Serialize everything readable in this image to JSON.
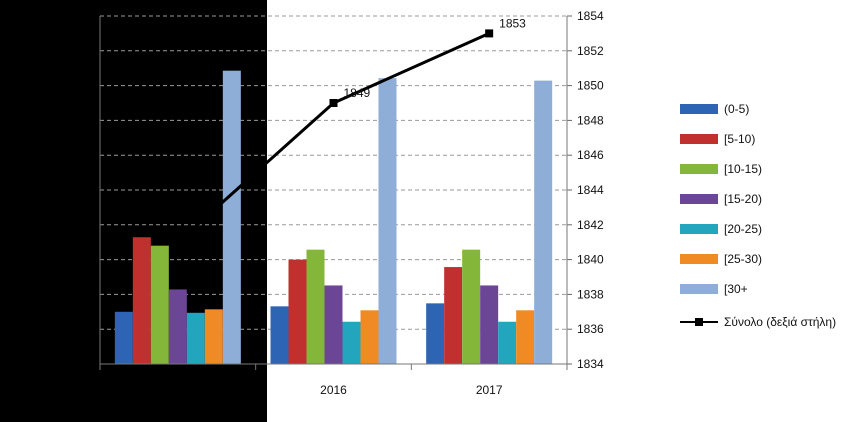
{
  "chart_data": {
    "type": "bar",
    "categories": [
      "",
      "2016",
      "2017"
    ],
    "series": [
      {
        "name": "(0-5)",
        "color": "#2e64b4",
        "values": [
          10.5,
          11.6,
          12.2
        ]
      },
      {
        "name": "[5-10)",
        "color": "#c0302e",
        "values": [
          25.5,
          21.0,
          19.5
        ]
      },
      {
        "name": "[10-15)",
        "color": "#84b63a",
        "values": [
          23.8,
          23.0,
          23.0
        ]
      },
      {
        "name": "[15-20)",
        "color": "#6b4596",
        "values": [
          15.0,
          15.8,
          15.8
        ]
      },
      {
        "name": "[20-25)",
        "color": "#23a5bd",
        "values": [
          10.3,
          8.5,
          8.5
        ]
      },
      {
        "name": "[25-30)",
        "color": "#ef8a25",
        "values": [
          11.0,
          10.8,
          10.8
        ]
      },
      {
        "name": "[30+",
        "color": "#8eaed8",
        "values": [
          59.0,
          57.5,
          57.0
        ]
      }
    ],
    "line": {
      "name": "Σύνολο (δεξιά στήλη)",
      "color": "#000000",
      "values": [
        1841,
        1849,
        1853
      ],
      "labels": [
        "",
        "1849",
        "1853"
      ]
    },
    "ylim_left": [
      0,
      70
    ],
    "ylim_right": [
      1834,
      1854
    ],
    "right_ticks": [
      "1834",
      "1836",
      "1838",
      "1840",
      "1842",
      "1844",
      "1846",
      "1848",
      "1850",
      "1852",
      "1854"
    ],
    "grid": true,
    "legend_position": "right"
  }
}
